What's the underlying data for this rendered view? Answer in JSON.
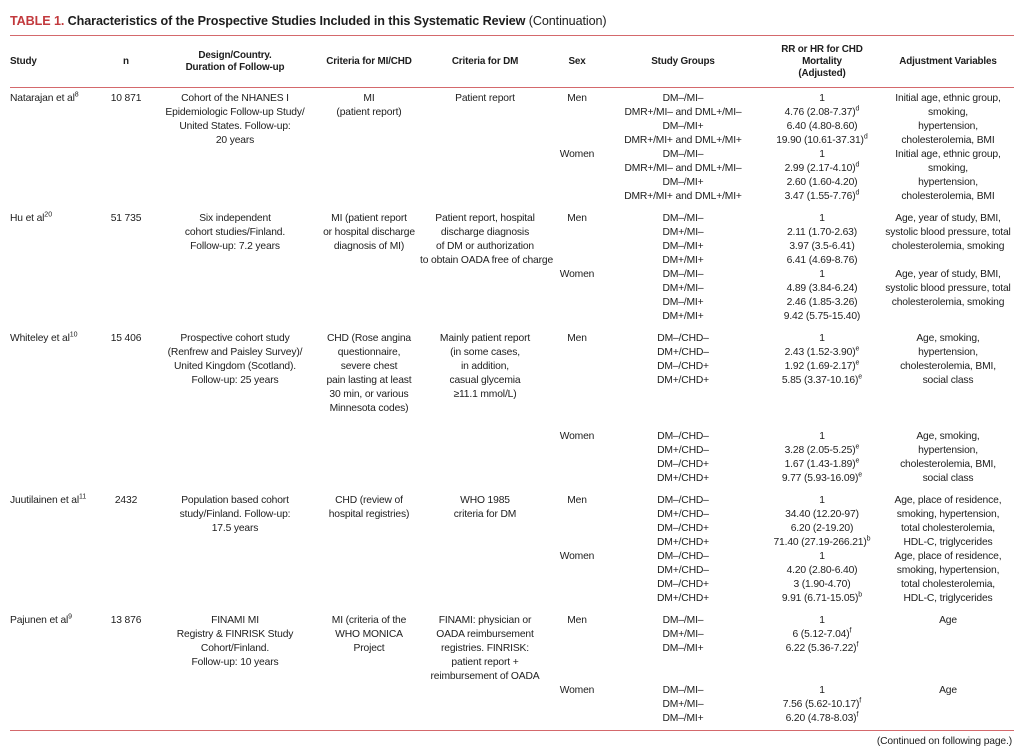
{
  "title": {
    "label": "TABLE 1.",
    "text": " Characteristics of the Prospective Studies Included in this Systematic Review",
    "continuation": " (Continuation)"
  },
  "header": {
    "study": "Study",
    "n": "n",
    "design": "Design/Country.\nDuration of Follow-up",
    "criteria_mi": "Criteria for MI/CHD",
    "criteria_dm": "Criteria for DM",
    "sex": "Sex",
    "groups": "Study Groups",
    "rr": "RR or HR for CHD Mortality\n(Adjusted)",
    "adjustment": "Adjustment Variables"
  },
  "studies": [
    {
      "study": "Natarajan et al",
      "ref": "8",
      "n": "10 871",
      "design": "Cohort of the NHANES I\nEpidemiologic Follow-up Study/\nUnited States. Follow-up:\n20 years",
      "criteria_mi": "MI\n(patient report)",
      "criteria_dm": "Patient report",
      "blocks": [
        {
          "sex": "Men",
          "gap_before_lines": 0,
          "entries": [
            {
              "group": "DM–/MI–",
              "rr": "1",
              "sup": ""
            },
            {
              "group": "DMR+/MI– and DML+/MI–",
              "rr": "4.76 (2.08-7.37)",
              "sup": "d"
            },
            {
              "group": "DM–/MI+",
              "rr": "6.40 (4.80-8.60)",
              "sup": ""
            },
            {
              "group": "DMR+/MI+ and DML+/MI+",
              "rr": "19.90 (10.61-37.31)",
              "sup": "d"
            }
          ],
          "adjustment": "Initial age, ethnic group,\nsmoking,\nhypertension,\ncholesterolemia, BMI"
        },
        {
          "sex": "Women",
          "gap_before_lines": 0,
          "entries": [
            {
              "group": "DM–/MI–",
              "rr": "1",
              "sup": ""
            },
            {
              "group": "DMR+/MI– and DML+/MI–",
              "rr": "2.99 (2.17-4.10)",
              "sup": "d"
            },
            {
              "group": "DM–/MI+",
              "rr": "2.60 (1.60-4.20)",
              "sup": ""
            },
            {
              "group": "DMR+/MI+ and DML+/MI+",
              "rr": "3.47 (1.55-7.76)",
              "sup": "d"
            }
          ],
          "adjustment": "Initial age, ethnic group,\nsmoking,\nhypertension,\ncholesterolemia, BMI"
        }
      ]
    },
    {
      "study": "Hu et al",
      "ref": "20",
      "n": "51 735",
      "design": "Six independent\ncohort studies/Finland.\nFollow-up: 7.2 years",
      "criteria_mi": "MI (patient report\nor hospital discharge\ndiagnosis of MI)",
      "criteria_dm": "Patient report, hospital\ndischarge diagnosis\nof DM or authorization\nto obtain OADA free of charge",
      "blocks": [
        {
          "sex": "Men",
          "gap_before_lines": 0,
          "entries": [
            {
              "group": "DM–/MI–",
              "rr": "1",
              "sup": ""
            },
            {
              "group": "DM+/MI–",
              "rr": "2.11 (1.70-2.63)",
              "sup": ""
            },
            {
              "group": "DM–/MI+",
              "rr": "3.97 (3.5-6.41)",
              "sup": ""
            },
            {
              "group": "DM+/MI+",
              "rr": "6.41 (4.69-8.76)",
              "sup": ""
            }
          ],
          "adjustment": "Age, year of study, BMI,\nsystolic blood pressure, total\ncholesterolemia, smoking"
        },
        {
          "sex": "Women",
          "gap_before_lines": 0,
          "entries": [
            {
              "group": "DM–/MI–",
              "rr": "1",
              "sup": ""
            },
            {
              "group": "DM+/MI–",
              "rr": "4.89 (3.84-6.24)",
              "sup": ""
            },
            {
              "group": "DM–/MI+",
              "rr": "2.46 (1.85-3.26)",
              "sup": ""
            },
            {
              "group": "DM+/MI+",
              "rr": "9.42 (5.75-15.40)",
              "sup": ""
            }
          ],
          "adjustment": "Age, year of study, BMI,\nsystolic blood pressure, total\ncholesterolemia, smoking"
        }
      ]
    },
    {
      "study": "Whiteley et al",
      "ref": "10",
      "n": "15 406",
      "design": "Prospective cohort study\n(Renfrew and Paisley Survey)/\nUnited Kingdom (Scotland).\nFollow-up: 25 years",
      "criteria_mi": "CHD (Rose angina\nquestionnaire,\nsevere chest\npain lasting at least\n30 min, or various\nMinnesota codes)",
      "criteria_dm": "Mainly patient report\n(in some cases,\nin addition,\ncasual glycemia\n≥11.1 mmol/L)",
      "blocks": [
        {
          "sex": "Men",
          "gap_before_lines": 0,
          "entries": [
            {
              "group": "DM–/CHD–",
              "rr": "1",
              "sup": ""
            },
            {
              "group": "DM+/CHD–",
              "rr": "2.43 (1.52-3.90)",
              "sup": "e"
            },
            {
              "group": "DM–/CHD+",
              "rr": "1.92 (1.69-2.17)",
              "sup": "e"
            },
            {
              "group": "DM+/CHD+",
              "rr": "5.85 (3.37-10.16)",
              "sup": "e"
            }
          ],
          "adjustment": "Age, smoking,\nhypertension,\ncholesterolemia, BMI,\nsocial class"
        },
        {
          "sex": "Women",
          "gap_before_lines": 3,
          "entries": [
            {
              "group": "DM–/CHD–",
              "rr": "1",
              "sup": ""
            },
            {
              "group": "DM+/CHD–",
              "rr": "3.28 (2.05-5.25)",
              "sup": "e"
            },
            {
              "group": "DM–/CHD+",
              "rr": "1.67 (1.43-1.89)",
              "sup": "e"
            },
            {
              "group": "DM+/CHD+",
              "rr": "9.77 (5.93-16.09)",
              "sup": "e"
            }
          ],
          "adjustment": "Age, smoking,\nhypertension,\ncholesterolemia, BMI,\nsocial class"
        }
      ]
    },
    {
      "study": "Juutilainen et al",
      "ref": "11",
      "n": "2432",
      "design": "Population based cohort\nstudy/Finland. Follow-up:\n17.5 years",
      "criteria_mi": "CHD (review of\nhospital registries)",
      "criteria_dm": "WHO 1985\ncriteria for DM",
      "blocks": [
        {
          "sex": "Men",
          "gap_before_lines": 0,
          "entries": [
            {
              "group": "DM–/CHD–",
              "rr": "1",
              "sup": ""
            },
            {
              "group": "DM+/CHD–",
              "rr": "34.40 (12.20-97)",
              "sup": ""
            },
            {
              "group": "DM–/CHD+",
              "rr": "6.20 (2-19.20)",
              "sup": ""
            },
            {
              "group": "DM+/CHD+",
              "rr": "71.40 (27.19-266.21)",
              "sup": "b"
            }
          ],
          "adjustment": "Age, place of residence,\nsmoking, hypertension,\ntotal cholesterolemia,\nHDL-C, triglycerides"
        },
        {
          "sex": "Women",
          "gap_before_lines": 0,
          "entries": [
            {
              "group": "DM–/CHD–",
              "rr": "1",
              "sup": ""
            },
            {
              "group": "DM+/CHD–",
              "rr": "4.20 (2.80-6.40)",
              "sup": ""
            },
            {
              "group": "DM–/CHD+",
              "rr": "3 (1.90-4.70)",
              "sup": ""
            },
            {
              "group": "DM+/CHD+",
              "rr": "9.91 (6.71-15.05)",
              "sup": "b"
            }
          ],
          "adjustment": "Age, place of residence,\nsmoking, hypertension,\ntotal cholesterolemia,\nHDL-C, triglycerides"
        }
      ]
    },
    {
      "study": "Pajunen et al",
      "ref": "9",
      "n": "13 876",
      "design": "FINAMI MI\nRegistry & FINRISK Study\nCohort/Finland.\nFollow-up: 10 years",
      "criteria_mi": "MI (criteria of the\nWHO MONICA\nProject",
      "criteria_dm": "FINAMI: physician or\nOADA reimbursement\nregistries. FINRISK:\npatient report +\nreimbursement of OADA",
      "blocks": [
        {
          "sex": "Men",
          "gap_before_lines": 0,
          "entries": [
            {
              "group": "DM–/MI–",
              "rr": "1",
              "sup": ""
            },
            {
              "group": "DM+/MI–",
              "rr": "6 (5.12-7.04)",
              "sup": "f"
            },
            {
              "group": "DM–/MI+",
              "rr": "6.22 (5.36-7.22)",
              "sup": "f"
            }
          ],
          "adjustment": "Age"
        },
        {
          "sex": "Women",
          "gap_before_lines": 2,
          "entries": [
            {
              "group": "DM–/MI–",
              "rr": "1",
              "sup": ""
            },
            {
              "group": "DM+/MI–",
              "rr": "7.56 (5.62-10.17)",
              "sup": "f"
            },
            {
              "group": "DM–/MI+",
              "rr": "6.20 (4.78-8.03)",
              "sup": "f"
            }
          ],
          "adjustment": "Age"
        }
      ]
    }
  ],
  "footer": {
    "note": "(Continued on following page.)"
  }
}
